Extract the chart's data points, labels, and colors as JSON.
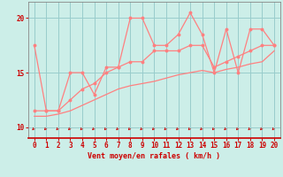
{
  "xlabel": "Vent moyen/en rafales ( km/h )",
  "bg_color": "#cceee8",
  "line_color": "#ff8080",
  "grid_color": "#99cccc",
  "axis_color": "#cc0000",
  "xlim": [
    -0.5,
    20.5
  ],
  "ylim": [
    9.0,
    21.5
  ],
  "yticks": [
    10,
    15,
    20
  ],
  "xticks": [
    0,
    1,
    2,
    3,
    4,
    5,
    6,
    7,
    8,
    9,
    10,
    11,
    12,
    13,
    14,
    15,
    16,
    17,
    18,
    19,
    20
  ],
  "line1_x": [
    0,
    1,
    2,
    3,
    4,
    5,
    6,
    7,
    8,
    9,
    10,
    11,
    12,
    13,
    14,
    15,
    16,
    17,
    18,
    19,
    20
  ],
  "line1_y": [
    17.5,
    11.5,
    11.5,
    15.0,
    15.0,
    13.0,
    15.5,
    15.5,
    20.0,
    20.0,
    17.5,
    17.5,
    18.5,
    20.5,
    18.5,
    15.0,
    19.0,
    15.0,
    19.0,
    19.0,
    17.5
  ],
  "line2_x": [
    0,
    1,
    2,
    3,
    4,
    5,
    6,
    7,
    8,
    9,
    10,
    11,
    12,
    13,
    14,
    15,
    16,
    17,
    18,
    19,
    20
  ],
  "line2_y": [
    11.5,
    11.5,
    11.5,
    12.5,
    13.5,
    14.0,
    15.0,
    15.5,
    16.0,
    16.0,
    17.0,
    17.0,
    17.0,
    17.5,
    17.5,
    15.5,
    16.0,
    16.5,
    17.0,
    17.5,
    17.5
  ],
  "line3_x": [
    0,
    1,
    2,
    3,
    4,
    5,
    6,
    7,
    8,
    9,
    10,
    11,
    12,
    13,
    14,
    15,
    16,
    17,
    18,
    19,
    20
  ],
  "line3_y": [
    11.0,
    11.0,
    11.2,
    11.5,
    12.0,
    12.5,
    13.0,
    13.5,
    13.8,
    14.0,
    14.2,
    14.5,
    14.8,
    15.0,
    15.2,
    15.0,
    15.3,
    15.5,
    15.8,
    16.0,
    17.0
  ]
}
